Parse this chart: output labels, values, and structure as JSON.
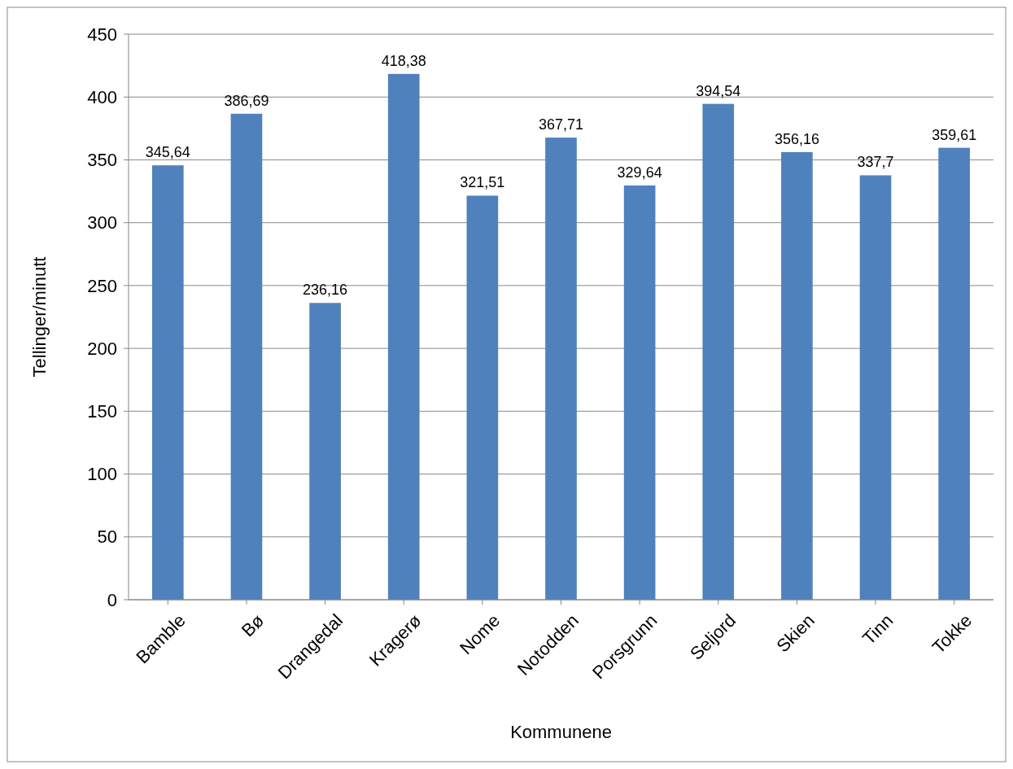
{
  "chart_data": {
    "type": "bar",
    "xlabel": "Kommunene",
    "ylabel": "Tellinger/minutt",
    "categories": [
      "Bamble",
      "Bø",
      "Drangedal",
      "Kragerø",
      "Nome",
      "Notodden",
      "Porsgrunn",
      "Seljord",
      "Skien",
      "Tinn",
      "Tokke"
    ],
    "values": [
      345.64,
      386.69,
      236.16,
      418.38,
      321.51,
      367.71,
      329.64,
      394.54,
      356.16,
      337.7,
      359.61
    ],
    "value_labels": [
      "345,64",
      "386,69",
      "236,16",
      "418,38",
      "321,51",
      "367,71",
      "329,64",
      "394,54",
      "356,16",
      "337,7",
      "359,61"
    ],
    "color": "#4f81bd",
    "ylim": [
      0,
      450
    ],
    "yticks": [
      0,
      50,
      100,
      150,
      200,
      250,
      300,
      350,
      400,
      450
    ],
    "grid": "y"
  }
}
